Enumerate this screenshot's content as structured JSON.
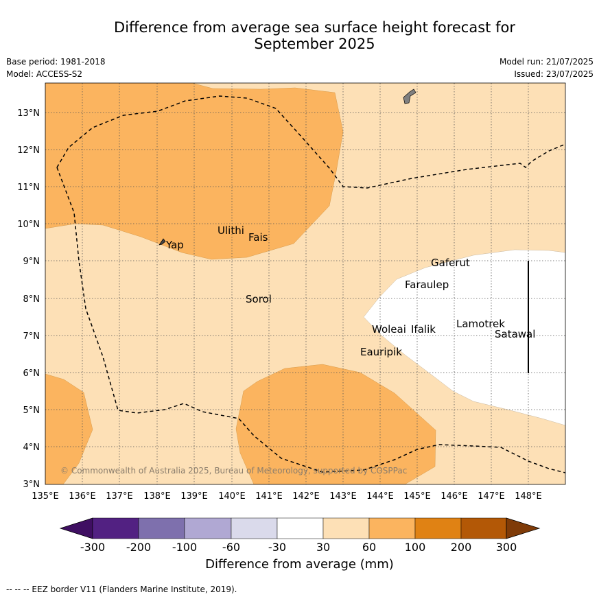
{
  "title_line1": "Difference from average sea surface height forecast for",
  "title_line2": "September 2025",
  "meta": {
    "base_period": "Base period: 1981-2018",
    "model": "Model: ACCESS-S2",
    "model_run": "Model run: 21/07/2025",
    "issued": "Issued: 23/07/2025"
  },
  "map": {
    "lat_labels": [
      "13°N",
      "12°N",
      "11°N",
      "10°N",
      "9°N",
      "8°N",
      "7°N",
      "6°N",
      "5°N",
      "4°N",
      "3°N"
    ],
    "lon_labels": [
      "135°E",
      "136°E",
      "137°E",
      "138°E",
      "139°E",
      "140°E",
      "141°E",
      "142°E",
      "143°E",
      "144°E",
      "145°E",
      "146°E",
      "147°E",
      "148°E"
    ],
    "places": [
      "Yap",
      "Ulithi",
      "Fais",
      "Gaferut",
      "Faraulep",
      "Sorol",
      "Lamotrek",
      "Woleai",
      "Ifalik",
      "Satawal",
      "Eauripik"
    ],
    "copyright": "© Commonwealth of Australia 2025, Bureau of Meteorology, supported by COSPPac",
    "colors": {
      "light_orange": "#fde0b6",
      "mid_orange": "#fbb45f",
      "white_band": "#ffffff",
      "land": "#808080",
      "eez_line": "#000000"
    }
  },
  "colorbar": {
    "ticks": [
      "-300",
      "-200",
      "-100",
      "-60",
      "-30",
      "30",
      "60",
      "100",
      "200",
      "300"
    ],
    "colors": [
      "#3f0f62",
      "#522182",
      "#7e70ad",
      "#b0a8d3",
      "#dadaeb",
      "#ffffff",
      "#fde0b6",
      "#fbb45f",
      "#e08214",
      "#b35806",
      "#7f3b08"
    ],
    "label": "Difference from average (mm)"
  },
  "footer": "--  --  -- EEZ border V11 (Flanders Marine Institute, 2019)."
}
